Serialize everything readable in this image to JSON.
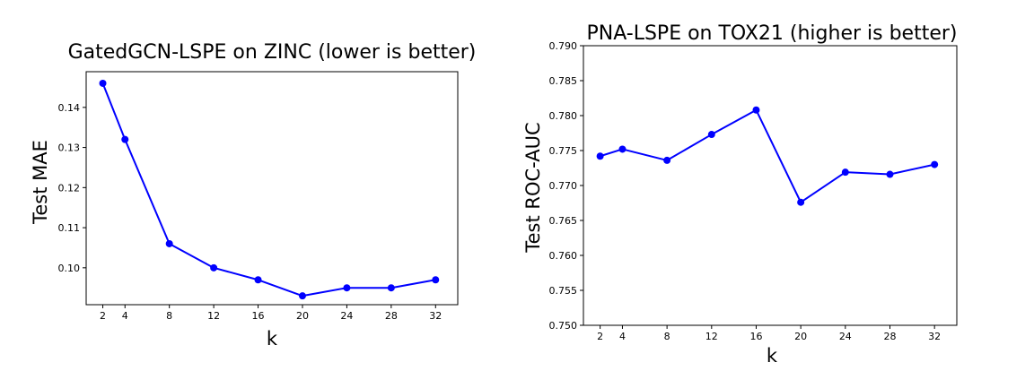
{
  "chart_data": [
    {
      "type": "line",
      "title": "GatedGCN-LSPE on ZINC (lower is better)",
      "xlabel": "k",
      "ylabel": "Test MAE",
      "x": [
        2,
        4,
        8,
        12,
        16,
        20,
        24,
        28,
        32
      ],
      "x_ticks": [
        "2",
        "4",
        "8",
        "12",
        "16",
        "20",
        "24",
        "28",
        "32"
      ],
      "y_ticks": [
        "0.10",
        "0.11",
        "0.12",
        "0.13",
        "0.14"
      ],
      "y_tick_values": [
        0.1,
        0.11,
        0.12,
        0.13,
        0.14
      ],
      "xlim": [
        0.5,
        34
      ],
      "ylim": [
        0.0908,
        0.1489
      ],
      "grid": false,
      "series": [
        {
          "values": [
            0.146,
            0.132,
            0.106,
            0.1,
            0.097,
            0.093,
            0.095,
            0.095,
            0.097
          ],
          "color": "#0000ff"
        }
      ]
    },
    {
      "type": "line",
      "title": "PNA-LSPE on TOX21 (higher is better)",
      "xlabel": "k",
      "ylabel": "Test ROC-AUC",
      "x": [
        2,
        4,
        8,
        12,
        16,
        20,
        24,
        28,
        32
      ],
      "x_ticks": [
        "2",
        "4",
        "8",
        "12",
        "16",
        "20",
        "24",
        "28",
        "32"
      ],
      "y_ticks": [
        "0.750",
        "0.755",
        "0.760",
        "0.765",
        "0.770",
        "0.775",
        "0.780",
        "0.785",
        "0.790"
      ],
      "y_tick_values": [
        0.75,
        0.755,
        0.76,
        0.765,
        0.77,
        0.775,
        0.78,
        0.785,
        0.79
      ],
      "xlim": [
        0.5,
        34
      ],
      "ylim": [
        0.75,
        0.79
      ],
      "grid": false,
      "series": [
        {
          "values": [
            0.7742,
            0.7752,
            0.7736,
            0.7773,
            0.7808,
            0.7676,
            0.7719,
            0.7716,
            0.773
          ],
          "color": "#0000ff"
        }
      ]
    }
  ]
}
